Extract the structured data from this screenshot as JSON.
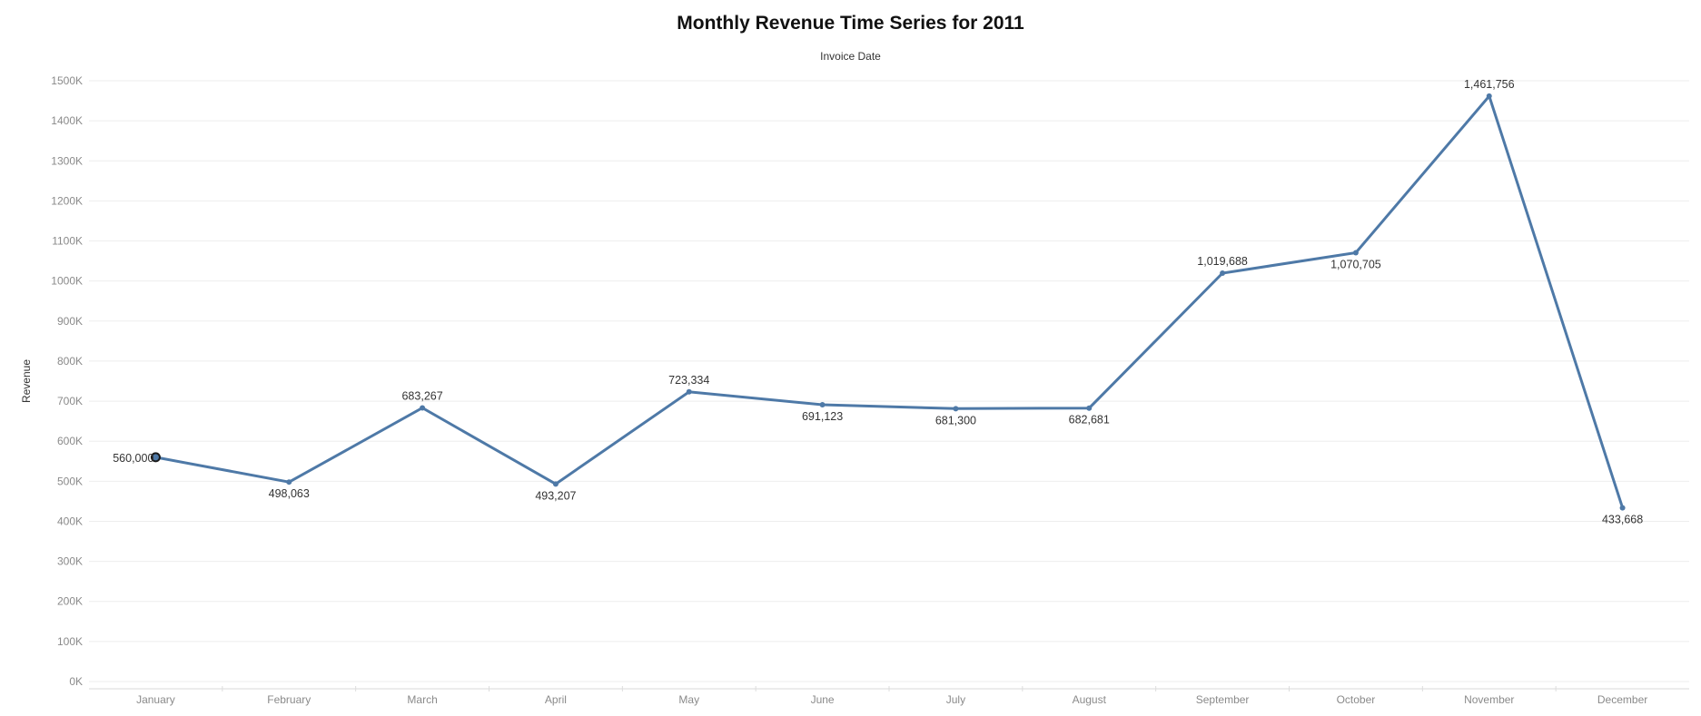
{
  "chart_data": {
    "type": "line",
    "title": "Monthly Revenue Time Series for 2011",
    "xlabel": "Invoice Date",
    "ylabel": "Revenue",
    "categories": [
      "January",
      "February",
      "March",
      "April",
      "May",
      "June",
      "July",
      "August",
      "September",
      "October",
      "November",
      "December"
    ],
    "series": [
      {
        "values": [
          560000,
          498063,
          683267,
          493207,
          723334,
          691123,
          681300,
          682681,
          1019688,
          1070705,
          1461756,
          433668
        ],
        "labels": [
          "560,000",
          "498,063",
          "683,267",
          "493,207",
          "723,334",
          "691,123",
          "681,300",
          "682,681",
          "1,019,688",
          "1,070,705",
          "1,461,756",
          "433,668"
        ],
        "label_positions": [
          "left",
          "below",
          "above",
          "below",
          "above",
          "below",
          "below",
          "below",
          "above",
          "below",
          "above",
          "below"
        ],
        "highlighted_index": 0
      }
    ],
    "ylim": [
      0,
      1500000
    ],
    "yticks": [
      0,
      100000,
      200000,
      300000,
      400000,
      500000,
      600000,
      700000,
      800000,
      900000,
      1000000,
      1100000,
      1200000,
      1300000,
      1400000,
      1500000
    ],
    "ytick_labels": [
      "0K",
      "100K",
      "200K",
      "300K",
      "400K",
      "500K",
      "600K",
      "700K",
      "800K",
      "900K",
      "1000K",
      "1100K",
      "1200K",
      "1300K",
      "1400K",
      "1500K"
    ],
    "grid": true,
    "legend": "none",
    "line_color": "#4e79a7"
  }
}
